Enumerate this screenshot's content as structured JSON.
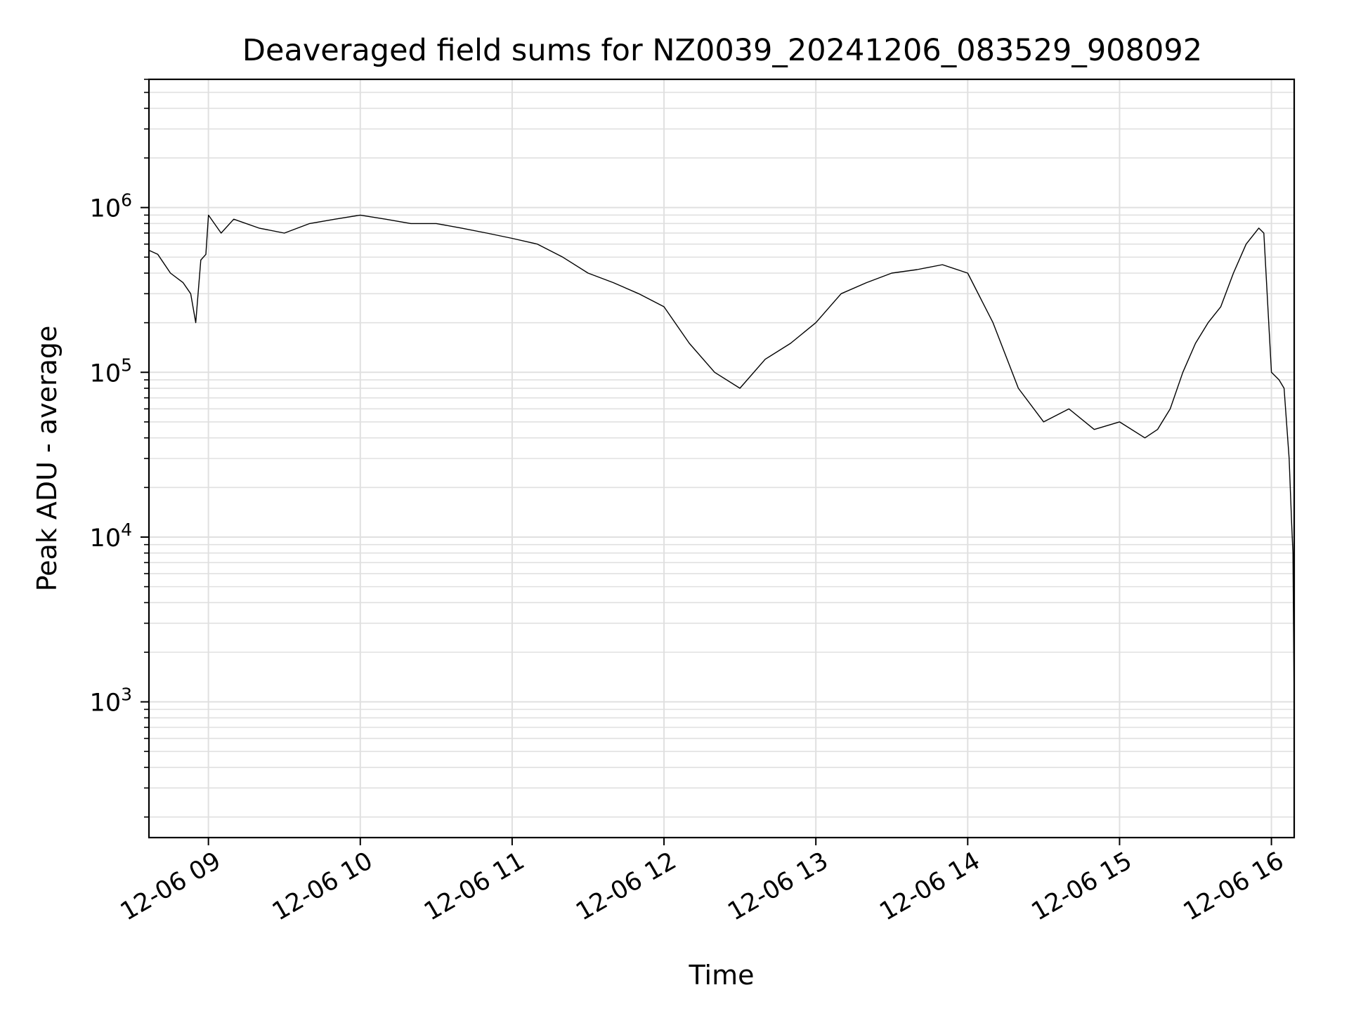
{
  "chart_data": {
    "type": "line",
    "title": "Deaveraged field sums for NZ0039_20241206_083529_908092",
    "xlabel": "Time",
    "ylabel": "Peak ADU - average",
    "yscale": "log",
    "ylim": [
      150,
      6000000
    ],
    "xlim": [
      "2024-12-06 08:36:30",
      "2024-12-06 16:09:00"
    ],
    "grid": true,
    "line_color": "#000000",
    "xticks": [
      {
        "t": "2024-12-06 09:00",
        "label": "12-06 09"
      },
      {
        "t": "2024-12-06 10:00",
        "label": "12-06 10"
      },
      {
        "t": "2024-12-06 11:00",
        "label": "12-06 11"
      },
      {
        "t": "2024-12-06 12:00",
        "label": "12-06 12"
      },
      {
        "t": "2024-12-06 13:00",
        "label": "12-06 13"
      },
      {
        "t": "2024-12-06 14:00",
        "label": "12-06 14"
      },
      {
        "t": "2024-12-06 15:00",
        "label": "12-06 15"
      },
      {
        "t": "2024-12-06 16:00",
        "label": "12-06 16"
      }
    ],
    "yticks": [
      {
        "value": 1000,
        "base": "10",
        "exp": "3"
      },
      {
        "value": 10000,
        "base": "10",
        "exp": "4"
      },
      {
        "value": 100000,
        "base": "10",
        "exp": "5"
      },
      {
        "value": 1000000,
        "base": "10",
        "exp": "6"
      }
    ],
    "series": [
      {
        "x": [
          "2024-12-06 08:36:30",
          "2024-12-06 08:40",
          "2024-12-06 08:45",
          "2024-12-06 08:50",
          "2024-12-06 08:53",
          "2024-12-06 08:55",
          "2024-12-06 08:57",
          "2024-12-06 08:59",
          "2024-12-06 09:00",
          "2024-12-06 09:05",
          "2024-12-06 09:10",
          "2024-12-06 09:20",
          "2024-12-06 09:30",
          "2024-12-06 09:40",
          "2024-12-06 09:50",
          "2024-12-06 10:00",
          "2024-12-06 10:10",
          "2024-12-06 10:20",
          "2024-12-06 10:30",
          "2024-12-06 10:40",
          "2024-12-06 10:50",
          "2024-12-06 11:00",
          "2024-12-06 11:10",
          "2024-12-06 11:20",
          "2024-12-06 11:30",
          "2024-12-06 11:40",
          "2024-12-06 11:50",
          "2024-12-06 12:00",
          "2024-12-06 12:10",
          "2024-12-06 12:20",
          "2024-12-06 12:30",
          "2024-12-06 12:40",
          "2024-12-06 12:50",
          "2024-12-06 13:00",
          "2024-12-06 13:10",
          "2024-12-06 13:20",
          "2024-12-06 13:30",
          "2024-12-06 13:40",
          "2024-12-06 13:50",
          "2024-12-06 14:00",
          "2024-12-06 14:10",
          "2024-12-06 14:20",
          "2024-12-06 14:30",
          "2024-12-06 14:40",
          "2024-12-06 14:50",
          "2024-12-06 15:00",
          "2024-12-06 15:10",
          "2024-12-06 15:15",
          "2024-12-06 15:20",
          "2024-12-06 15:25",
          "2024-12-06 15:30",
          "2024-12-06 15:35",
          "2024-12-06 15:40",
          "2024-12-06 15:45",
          "2024-12-06 15:50",
          "2024-12-06 15:55",
          "2024-12-06 15:57",
          "2024-12-06 16:00",
          "2024-12-06 16:03",
          "2024-12-06 16:05",
          "2024-12-06 16:07",
          "2024-12-06 16:08",
          "2024-12-06 16:08:30",
          "2024-12-06 16:09"
        ],
        "y": [
          550000,
          520000,
          400000,
          350000,
          300000,
          200000,
          480000,
          520000,
          900000,
          700000,
          850000,
          750000,
          700000,
          800000,
          850000,
          900000,
          850000,
          800000,
          800000,
          750000,
          700000,
          650000,
          600000,
          500000,
          400000,
          350000,
          300000,
          250000,
          150000,
          100000,
          80000,
          120000,
          150000,
          200000,
          300000,
          350000,
          400000,
          420000,
          450000,
          400000,
          200000,
          80000,
          50000,
          60000,
          45000,
          50000,
          40000,
          45000,
          60000,
          100000,
          150000,
          200000,
          250000,
          400000,
          600000,
          750000,
          700000,
          100000,
          90000,
          80000,
          30000,
          12000,
          8000,
          900
        ]
      }
    ]
  }
}
